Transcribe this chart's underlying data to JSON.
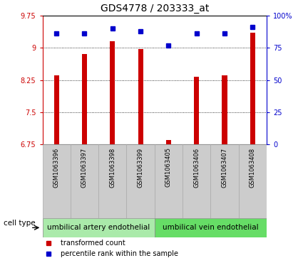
{
  "title": "GDS4778 / 203333_at",
  "samples": [
    "GSM1063396",
    "GSM1063397",
    "GSM1063398",
    "GSM1063399",
    "GSM1063405",
    "GSM1063406",
    "GSM1063407",
    "GSM1063408"
  ],
  "bar_values": [
    8.35,
    8.85,
    9.15,
    8.97,
    6.85,
    8.32,
    8.35,
    9.35
  ],
  "dot_values_pct": [
    86,
    86,
    90,
    88,
    77,
    86,
    86,
    91
  ],
  "ylim_left": [
    6.75,
    9.75
  ],
  "ylim_right": [
    0,
    100
  ],
  "yticks_left": [
    6.75,
    7.5,
    8.25,
    9.0,
    9.75
  ],
  "yticks_right": [
    0,
    25,
    50,
    75,
    100
  ],
  "ytick_labels_left": [
    "6.75",
    "7.5",
    "8.25",
    "9",
    "9.75"
  ],
  "ytick_labels_right": [
    "0",
    "25",
    "50",
    "75",
    "100%"
  ],
  "grid_values": [
    7.5,
    8.25,
    9.0
  ],
  "bar_color": "#cc0000",
  "dot_color": "#0000cc",
  "cell_types": [
    "umbilical artery endothelial",
    "umbilical vein endothelial"
  ],
  "cell_type_ranges": [
    [
      0,
      4
    ],
    [
      4,
      8
    ]
  ],
  "cell_type_color_left": "#aaeaaa",
  "cell_type_color_right": "#66dd66",
  "legend_bar_label": "transformed count",
  "legend_dot_label": "percentile rank within the sample",
  "cell_type_label": "cell type",
  "bar_width": 0.18,
  "title_fontsize": 10,
  "tick_fontsize": 7,
  "sample_fontsize": 6,
  "celltype_fontsize": 7.5,
  "legend_fontsize": 7
}
